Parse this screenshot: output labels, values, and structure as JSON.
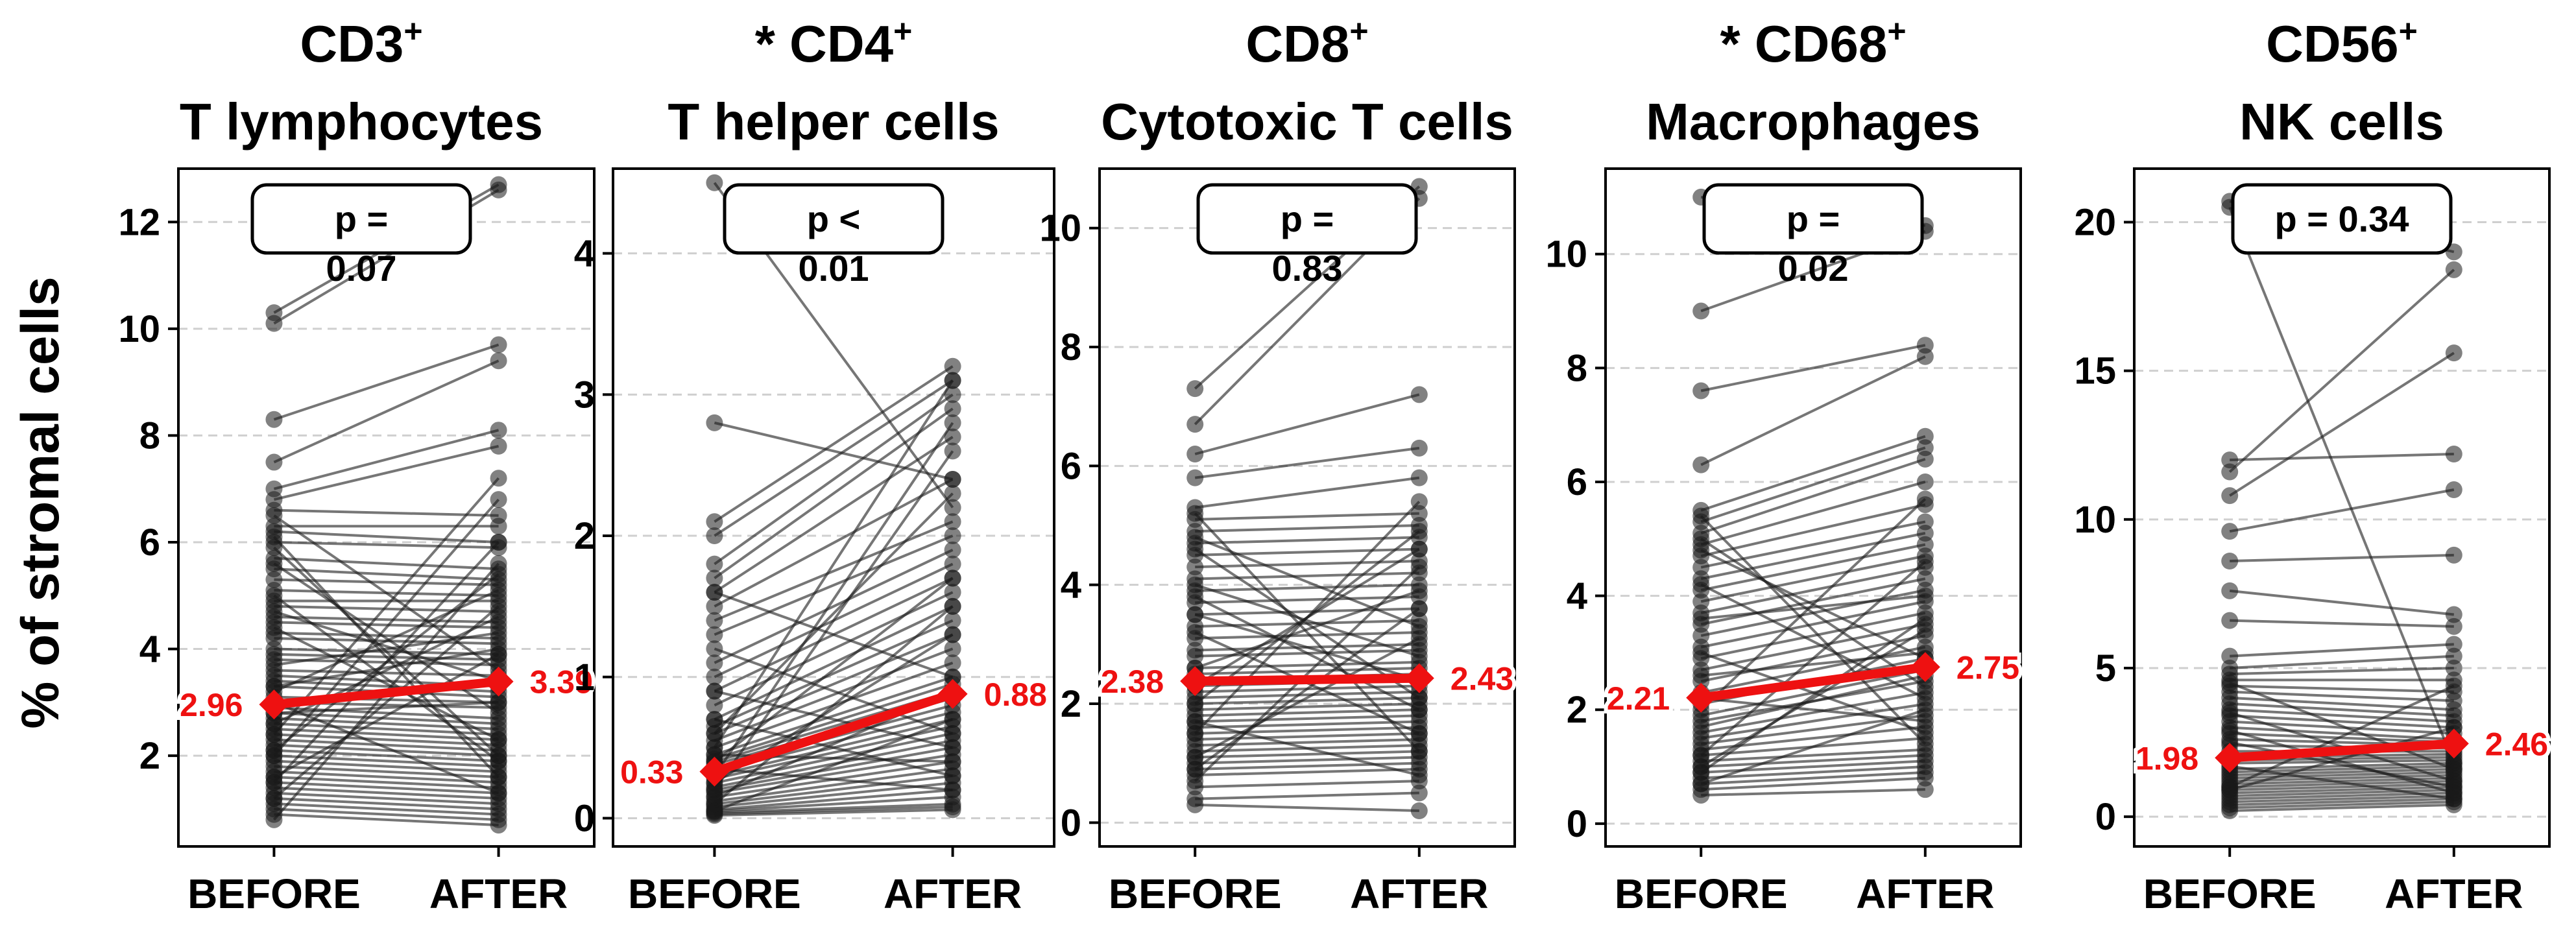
{
  "figure": {
    "y_label": "% of stromal cells",
    "accent_color": "#ee1111",
    "line_color": "#1a1a1a"
  },
  "chart_data": [
    {
      "type": "line",
      "title_line1": "CD3",
      "title_sup": "+",
      "title_line2": "T lymphocytes",
      "title_prefix": "",
      "categories": [
        "BEFORE",
        "AFTER"
      ],
      "yticks": [
        2,
        4,
        6,
        8,
        10,
        12
      ],
      "ylim": [
        0.3,
        13.0
      ],
      "p_label_top": "p =",
      "p_label_bottom": "0.07",
      "mean_before": 2.96,
      "mean_after": 3.39,
      "mean_before_label": "2.96",
      "mean_after_label": "3.39",
      "pairs": [
        [
          10.3,
          12.7
        ],
        [
          10.1,
          12.6
        ],
        [
          8.3,
          9.7
        ],
        [
          7.5,
          9.4
        ],
        [
          7.0,
          8.1
        ],
        [
          6.8,
          7.8
        ],
        [
          6.6,
          6.5
        ],
        [
          6.3,
          6.3
        ],
        [
          6.2,
          6.0
        ],
        [
          6.0,
          5.9
        ],
        [
          5.7,
          5.5
        ],
        [
          5.5,
          5.3
        ],
        [
          5.3,
          5.2
        ],
        [
          5.1,
          5.0
        ],
        [
          4.9,
          4.9
        ],
        [
          4.8,
          4.7
        ],
        [
          4.6,
          4.5
        ],
        [
          4.5,
          4.4
        ],
        [
          4.3,
          4.2
        ],
        [
          4.2,
          4.1
        ],
        [
          4.0,
          3.9
        ],
        [
          3.9,
          3.8
        ],
        [
          3.8,
          3.7
        ],
        [
          3.6,
          3.5
        ],
        [
          3.5,
          3.3
        ],
        [
          3.4,
          3.2
        ],
        [
          3.3,
          3.1
        ],
        [
          3.1,
          3.0
        ],
        [
          3.0,
          2.9
        ],
        [
          2.9,
          2.7
        ],
        [
          2.8,
          2.6
        ],
        [
          2.7,
          2.5
        ],
        [
          2.6,
          2.4
        ],
        [
          2.5,
          2.3
        ],
        [
          2.4,
          2.2
        ],
        [
          2.3,
          2.1
        ],
        [
          2.2,
          2.0
        ],
        [
          2.1,
          1.9
        ],
        [
          2.0,
          1.8
        ],
        [
          1.9,
          1.7
        ],
        [
          1.8,
          1.6
        ],
        [
          1.7,
          1.5
        ],
        [
          1.6,
          1.4
        ],
        [
          1.5,
          1.3
        ],
        [
          1.4,
          1.2
        ],
        [
          1.3,
          1.1
        ],
        [
          1.2,
          1.0
        ],
        [
          1.1,
          0.9
        ],
        [
          1.0,
          0.8
        ],
        [
          0.9,
          0.7
        ],
        [
          0.8,
          5.6
        ],
        [
          1.2,
          4.8
        ],
        [
          1.5,
          6.0
        ],
        [
          2.1,
          5.4
        ],
        [
          2.6,
          4.6
        ],
        [
          3.2,
          5.1
        ],
        [
          3.7,
          4.3
        ],
        [
          4.4,
          2.3
        ],
        [
          5.0,
          1.9
        ],
        [
          5.6,
          2.8
        ],
        [
          6.1,
          1.6
        ],
        [
          6.5,
          3.6
        ],
        [
          2.0,
          6.8
        ],
        [
          2.4,
          7.2
        ],
        [
          1.6,
          3.9
        ],
        [
          3.0,
          1.3
        ],
        [
          4.7,
          3.4
        ],
        [
          5.9,
          2.0
        ],
        [
          3.3,
          4.0
        ],
        [
          2.8,
          3.0
        ]
      ]
    },
    {
      "type": "line",
      "title_line1": "CD4",
      "title_sup": "+",
      "title_line2": "T helper cells",
      "title_prefix": "* ",
      "categories": [
        "BEFORE",
        "AFTER"
      ],
      "yticks": [
        0,
        1,
        2,
        3,
        4
      ],
      "ylim": [
        -0.2,
        4.6
      ],
      "p_label_top": "p <",
      "p_label_bottom": "0.01",
      "mean_before": 0.33,
      "mean_after": 0.88,
      "mean_before_label": "0.33",
      "mean_after_label": "0.88",
      "pairs": [
        [
          4.5,
          2.2
        ],
        [
          2.8,
          2.4
        ],
        [
          2.1,
          3.2
        ],
        [
          2.0,
          3.1
        ],
        [
          1.8,
          3.0
        ],
        [
          1.7,
          2.9
        ],
        [
          1.6,
          2.7
        ],
        [
          1.5,
          2.4
        ],
        [
          1.4,
          2.1
        ],
        [
          1.3,
          2.0
        ],
        [
          1.1,
          1.9
        ],
        [
          1.0,
          1.8
        ],
        [
          0.9,
          1.7
        ],
        [
          0.8,
          1.6
        ],
        [
          0.7,
          1.5
        ],
        [
          0.65,
          1.4
        ],
        [
          0.6,
          1.3
        ],
        [
          0.55,
          1.2
        ],
        [
          0.5,
          1.1
        ],
        [
          0.45,
          1.0
        ],
        [
          0.42,
          0.95
        ],
        [
          0.4,
          0.9
        ],
        [
          0.38,
          0.85
        ],
        [
          0.35,
          0.8
        ],
        [
          0.33,
          0.75
        ],
        [
          0.3,
          0.7
        ],
        [
          0.28,
          0.65
        ],
        [
          0.25,
          0.6
        ],
        [
          0.22,
          0.55
        ],
        [
          0.2,
          0.5
        ],
        [
          0.18,
          0.45
        ],
        [
          0.15,
          0.4
        ],
        [
          0.12,
          0.35
        ],
        [
          0.1,
          0.3
        ],
        [
          0.08,
          0.25
        ],
        [
          0.06,
          0.2
        ],
        [
          0.05,
          0.15
        ],
        [
          0.04,
          0.1
        ],
        [
          0.03,
          0.08
        ],
        [
          0.02,
          0.06
        ],
        [
          0.5,
          3.1
        ],
        [
          0.3,
          2.8
        ],
        [
          0.2,
          2.6
        ],
        [
          0.6,
          2.3
        ],
        [
          0.1,
          1.5
        ],
        [
          0.4,
          1.7
        ],
        [
          0.9,
          0.5
        ],
        [
          1.2,
          0.6
        ],
        [
          0.15,
          0.9
        ],
        [
          0.7,
          0.3
        ],
        [
          0.25,
          1.3
        ],
        [
          0.35,
          0.2
        ],
        [
          0.45,
          0.4
        ],
        [
          1.6,
          1.0
        ],
        [
          0.05,
          0.7
        ]
      ]
    },
    {
      "type": "line",
      "title_line1": "CD8",
      "title_sup": "+",
      "title_line2": "Cytotoxic T cells",
      "title_prefix": "",
      "categories": [
        "BEFORE",
        "AFTER"
      ],
      "yticks": [
        0,
        2,
        4,
        6,
        8,
        10
      ],
      "ylim": [
        -0.4,
        11.0
      ],
      "p_label_top": "p =",
      "p_label_bottom": "0.83",
      "mean_before": 2.38,
      "mean_after": 2.43,
      "mean_before_label": "2.38",
      "mean_after_label": "2.43",
      "pairs": [
        [
          7.3,
          10.7
        ],
        [
          6.7,
          10.5
        ],
        [
          6.2,
          7.2
        ],
        [
          5.8,
          6.3
        ],
        [
          5.3,
          5.8
        ],
        [
          5.1,
          5.2
        ],
        [
          4.9,
          5.0
        ],
        [
          4.7,
          4.8
        ],
        [
          4.5,
          4.6
        ],
        [
          4.3,
          4.4
        ],
        [
          4.1,
          4.2
        ],
        [
          3.9,
          4.0
        ],
        [
          3.7,
          3.8
        ],
        [
          3.5,
          3.6
        ],
        [
          3.3,
          3.4
        ],
        [
          3.1,
          3.2
        ],
        [
          2.9,
          3.0
        ],
        [
          2.8,
          2.9
        ],
        [
          2.6,
          2.7
        ],
        [
          2.5,
          2.6
        ],
        [
          2.4,
          2.5
        ],
        [
          2.3,
          2.4
        ],
        [
          2.2,
          2.3
        ],
        [
          2.1,
          2.2
        ],
        [
          2.0,
          2.1
        ],
        [
          1.9,
          2.0
        ],
        [
          1.8,
          1.9
        ],
        [
          1.7,
          1.8
        ],
        [
          1.6,
          1.7
        ],
        [
          1.5,
          1.6
        ],
        [
          1.4,
          1.5
        ],
        [
          1.3,
          1.4
        ],
        [
          1.2,
          1.3
        ],
        [
          1.1,
          1.2
        ],
        [
          1.0,
          1.1
        ],
        [
          0.9,
          1.0
        ],
        [
          0.8,
          0.9
        ],
        [
          0.6,
          0.7
        ],
        [
          0.4,
          0.5
        ],
        [
          0.3,
          0.2
        ],
        [
          1.5,
          5.4
        ],
        [
          2.0,
          4.9
        ],
        [
          0.7,
          4.3
        ],
        [
          3.2,
          1.5
        ],
        [
          4.6,
          2.1
        ],
        [
          5.2,
          1.2
        ],
        [
          2.6,
          3.9
        ],
        [
          1.1,
          3.1
        ],
        [
          3.8,
          1.9
        ],
        [
          4.0,
          2.8
        ],
        [
          1.7,
          0.8
        ],
        [
          2.3,
          4.6
        ],
        [
          3.5,
          2.4
        ],
        [
          0.9,
          3.6
        ],
        [
          4.8,
          3.3
        ]
      ]
    },
    {
      "type": "line",
      "title_line1": "CD68",
      "title_sup": "+",
      "title_line2": "Macrophages",
      "title_prefix": "* ",
      "categories": [
        "BEFORE",
        "AFTER"
      ],
      "yticks": [
        0,
        2,
        4,
        6,
        8,
        10
      ],
      "ylim": [
        -0.4,
        11.5
      ],
      "p_label_top": "p =",
      "p_label_bottom": "0.02",
      "mean_before": 2.21,
      "mean_after": 2.75,
      "mean_before_label": "2.21",
      "mean_after_label": "2.75",
      "pairs": [
        [
          11.0,
          10.5
        ],
        [
          9.0,
          10.4
        ],
        [
          7.6,
          8.4
        ],
        [
          6.3,
          8.2
        ],
        [
          5.5,
          6.8
        ],
        [
          5.3,
          6.6
        ],
        [
          5.1,
          6.4
        ],
        [
          4.9,
          6.0
        ],
        [
          4.7,
          5.6
        ],
        [
          4.5,
          5.3
        ],
        [
          4.3,
          5.1
        ],
        [
          4.1,
          4.9
        ],
        [
          3.9,
          4.7
        ],
        [
          3.7,
          4.5
        ],
        [
          3.5,
          4.3
        ],
        [
          3.3,
          4.1
        ],
        [
          3.1,
          3.9
        ],
        [
          2.9,
          3.7
        ],
        [
          2.7,
          3.5
        ],
        [
          2.5,
          3.3
        ],
        [
          2.3,
          3.1
        ],
        [
          2.1,
          2.9
        ],
        [
          1.9,
          2.7
        ],
        [
          1.8,
          2.5
        ],
        [
          1.6,
          2.3
        ],
        [
          1.5,
          2.1
        ],
        [
          1.4,
          1.9
        ],
        [
          1.3,
          1.7
        ],
        [
          1.2,
          1.5
        ],
        [
          1.1,
          1.3
        ],
        [
          1.0,
          1.2
        ],
        [
          0.9,
          1.1
        ],
        [
          0.8,
          1.0
        ],
        [
          0.7,
          0.9
        ],
        [
          0.6,
          0.8
        ],
        [
          0.5,
          0.6
        ],
        [
          1.2,
          4.6
        ],
        [
          0.9,
          3.6
        ],
        [
          2.0,
          5.7
        ],
        [
          3.0,
          1.6
        ],
        [
          4.2,
          2.2
        ],
        [
          5.4,
          1.4
        ],
        [
          2.6,
          3.0
        ],
        [
          1.7,
          2.6
        ],
        [
          3.6,
          4.0
        ],
        [
          4.8,
          2.9
        ],
        [
          0.7,
          2.0
        ],
        [
          2.2,
          1.8
        ],
        [
          1.0,
          3.4
        ],
        [
          5.0,
          2.4
        ]
      ]
    },
    {
      "type": "line",
      "title_line1": "CD56",
      "title_sup": "+",
      "title_line2": "NK cells",
      "title_prefix": "",
      "categories": [
        "BEFORE",
        "AFTER"
      ],
      "yticks": [
        0,
        5,
        10,
        15,
        20
      ],
      "ylim": [
        -1.0,
        21.8
      ],
      "p_label_top": "p = 0.34",
      "p_label_bottom": "",
      "mean_before": 1.98,
      "mean_after": 2.46,
      "mean_before_label": "1.98",
      "mean_after_label": "2.46",
      "pairs": [
        [
          20.7,
          19.0
        ],
        [
          20.5,
          1.8
        ],
        [
          12.0,
          12.2
        ],
        [
          11.6,
          18.4
        ],
        [
          10.8,
          15.6
        ],
        [
          9.6,
          11.0
        ],
        [
          8.6,
          8.8
        ],
        [
          7.6,
          6.8
        ],
        [
          6.6,
          6.4
        ],
        [
          5.4,
          5.8
        ],
        [
          5.0,
          5.4
        ],
        [
          4.8,
          5.0
        ],
        [
          4.6,
          4.6
        ],
        [
          4.4,
          4.2
        ],
        [
          4.2,
          3.9
        ],
        [
          4.0,
          3.6
        ],
        [
          3.8,
          3.4
        ],
        [
          3.6,
          3.2
        ],
        [
          3.4,
          3.0
        ],
        [
          3.2,
          2.8
        ],
        [
          3.0,
          2.6
        ],
        [
          2.8,
          2.5
        ],
        [
          2.6,
          2.4
        ],
        [
          2.4,
          2.3
        ],
        [
          2.2,
          2.2
        ],
        [
          2.0,
          2.1
        ],
        [
          1.9,
          2.0
        ],
        [
          1.8,
          1.9
        ],
        [
          1.6,
          1.8
        ],
        [
          1.5,
          1.7
        ],
        [
          1.4,
          1.6
        ],
        [
          1.3,
          1.5
        ],
        [
          1.2,
          1.4
        ],
        [
          1.1,
          1.3
        ],
        [
          1.0,
          1.2
        ],
        [
          0.9,
          1.1
        ],
        [
          0.8,
          1.0
        ],
        [
          0.7,
          0.9
        ],
        [
          0.6,
          0.8
        ],
        [
          0.5,
          0.7
        ],
        [
          0.4,
          0.6
        ],
        [
          0.3,
          0.5
        ],
        [
          0.2,
          0.4
        ],
        [
          1.0,
          4.4
        ],
        [
          2.5,
          1.0
        ],
        [
          3.5,
          1.2
        ],
        [
          0.9,
          3.0
        ],
        [
          1.7,
          0.6
        ],
        [
          4.5,
          1.6
        ],
        [
          2.9,
          0.8
        ]
      ]
    }
  ]
}
